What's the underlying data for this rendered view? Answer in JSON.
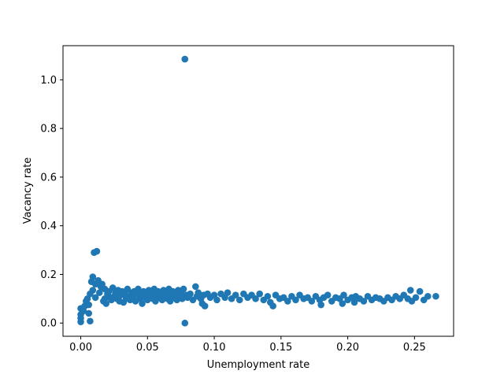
{
  "chart_data": {
    "type": "scatter",
    "xlabel": "Unemployment rate",
    "ylabel": "Vacancy rate",
    "xlim": [
      -0.0133,
      0.2793
    ],
    "ylim": [
      -0.0543,
      1.1403
    ],
    "xticks": [
      "0.00",
      "0.05",
      "0.10",
      "0.15",
      "0.20",
      "0.25"
    ],
    "xtick_values": [
      0,
      0.05,
      0.1,
      0.15,
      0.2,
      0.25
    ],
    "yticks": [
      "0.0",
      "0.2",
      "0.4",
      "0.6",
      "0.8",
      "1.0"
    ],
    "ytick_values": [
      0,
      0.2,
      0.4,
      0.6,
      0.8,
      1.0
    ],
    "grid": false,
    "marker_color": "#1f77b4",
    "series": [
      {
        "points": [
          [
            0.0,
            0.005
          ],
          [
            0.0,
            0.02
          ],
          [
            0.0,
            0.035
          ],
          [
            0.0,
            0.06
          ],
          [
            0.002,
            0.05
          ],
          [
            0.003,
            0.07
          ],
          [
            0.004,
            0.09
          ],
          [
            0.005,
            0.1
          ],
          [
            0.006,
            0.075
          ],
          [
            0.006,
            0.04
          ],
          [
            0.007,
            0.008
          ],
          [
            0.007,
            0.12
          ],
          [
            0.008,
            0.17
          ],
          [
            0.009,
            0.19
          ],
          [
            0.009,
            0.135
          ],
          [
            0.01,
            0.29
          ],
          [
            0.012,
            0.295
          ],
          [
            0.011,
            0.16
          ],
          [
            0.011,
            0.105
          ],
          [
            0.013,
            0.175
          ],
          [
            0.014,
            0.125
          ],
          [
            0.015,
            0.15
          ],
          [
            0.016,
            0.16
          ],
          [
            0.017,
            0.09
          ],
          [
            0.018,
            0.1
          ],
          [
            0.018,
            0.14
          ],
          [
            0.019,
            0.08
          ],
          [
            0.02,
            0.12
          ],
          [
            0.021,
            0.13
          ],
          [
            0.022,
            0.105
          ],
          [
            0.023,
            0.095
          ],
          [
            0.024,
            0.145
          ],
          [
            0.025,
            0.11
          ],
          [
            0.026,
            0.125
          ],
          [
            0.027,
            0.1
          ],
          [
            0.028,
            0.135
          ],
          [
            0.029,
            0.09
          ],
          [
            0.03,
            0.115
          ],
          [
            0.031,
            0.13
          ],
          [
            0.032,
            0.085
          ],
          [
            0.033,
            0.12
          ],
          [
            0.034,
            0.1
          ],
          [
            0.035,
            0.14
          ],
          [
            0.036,
            0.11
          ],
          [
            0.037,
            0.095
          ],
          [
            0.038,
            0.125
          ],
          [
            0.039,
            0.105
          ],
          [
            0.04,
            0.13
          ],
          [
            0.041,
            0.09
          ],
          [
            0.042,
            0.12
          ],
          [
            0.043,
            0.14
          ],
          [
            0.044,
            0.1
          ],
          [
            0.045,
            0.115
          ],
          [
            0.046,
            0.08
          ],
          [
            0.047,
            0.13
          ],
          [
            0.048,
            0.105
          ],
          [
            0.049,
            0.12
          ],
          [
            0.05,
            0.095
          ],
          [
            0.051,
            0.135
          ],
          [
            0.052,
            0.11
          ],
          [
            0.053,
            0.125
          ],
          [
            0.054,
            0.1
          ],
          [
            0.055,
            0.14
          ],
          [
            0.056,
            0.09
          ],
          [
            0.057,
            0.115
          ],
          [
            0.058,
            0.13
          ],
          [
            0.059,
            0.105
          ],
          [
            0.06,
            0.12
          ],
          [
            0.061,
            0.095
          ],
          [
            0.062,
            0.135
          ],
          [
            0.063,
            0.11
          ],
          [
            0.064,
            0.125
          ],
          [
            0.065,
            0.1
          ],
          [
            0.066,
            0.14
          ],
          [
            0.067,
            0.09
          ],
          [
            0.068,
            0.115
          ],
          [
            0.069,
            0.13
          ],
          [
            0.07,
            0.105
          ],
          [
            0.071,
            0.12
          ],
          [
            0.072,
            0.095
          ],
          [
            0.073,
            0.135
          ],
          [
            0.074,
            0.11
          ],
          [
            0.075,
            0.125
          ],
          [
            0.076,
            0.1
          ],
          [
            0.077,
            0.14
          ],
          [
            0.078,
            1.085
          ],
          [
            0.078,
            0.0
          ],
          [
            0.079,
            0.115
          ],
          [
            0.08,
            0.105
          ],
          [
            0.082,
            0.12
          ],
          [
            0.084,
            0.095
          ],
          [
            0.086,
            0.15
          ],
          [
            0.087,
            0.11
          ],
          [
            0.088,
            0.125
          ],
          [
            0.09,
            0.1
          ],
          [
            0.091,
            0.08
          ],
          [
            0.092,
            0.115
          ],
          [
            0.093,
            0.07
          ],
          [
            0.095,
            0.12
          ],
          [
            0.097,
            0.105
          ],
          [
            0.1,
            0.115
          ],
          [
            0.102,
            0.095
          ],
          [
            0.105,
            0.12
          ],
          [
            0.108,
            0.105
          ],
          [
            0.11,
            0.125
          ],
          [
            0.113,
            0.1
          ],
          [
            0.116,
            0.115
          ],
          [
            0.119,
            0.095
          ],
          [
            0.122,
            0.12
          ],
          [
            0.125,
            0.105
          ],
          [
            0.128,
            0.115
          ],
          [
            0.131,
            0.1
          ],
          [
            0.134,
            0.12
          ],
          [
            0.137,
            0.095
          ],
          [
            0.14,
            0.11
          ],
          [
            0.142,
            0.085
          ],
          [
            0.144,
            0.07
          ],
          [
            0.146,
            0.115
          ],
          [
            0.149,
            0.1
          ],
          [
            0.152,
            0.105
          ],
          [
            0.155,
            0.09
          ],
          [
            0.158,
            0.11
          ],
          [
            0.161,
            0.095
          ],
          [
            0.164,
            0.115
          ],
          [
            0.167,
            0.1
          ],
          [
            0.17,
            0.105
          ],
          [
            0.173,
            0.09
          ],
          [
            0.176,
            0.11
          ],
          [
            0.179,
            0.095
          ],
          [
            0.18,
            0.075
          ],
          [
            0.182,
            0.105
          ],
          [
            0.185,
            0.115
          ],
          [
            0.188,
            0.09
          ],
          [
            0.191,
            0.105
          ],
          [
            0.194,
            0.1
          ],
          [
            0.196,
            0.08
          ],
          [
            0.197,
            0.115
          ],
          [
            0.2,
            0.095
          ],
          [
            0.203,
            0.105
          ],
          [
            0.205,
            0.085
          ],
          [
            0.206,
            0.11
          ],
          [
            0.209,
            0.1
          ],
          [
            0.212,
            0.09
          ],
          [
            0.215,
            0.11
          ],
          [
            0.218,
            0.095
          ],
          [
            0.221,
            0.105
          ],
          [
            0.224,
            0.1
          ],
          [
            0.227,
            0.09
          ],
          [
            0.23,
            0.105
          ],
          [
            0.233,
            0.095
          ],
          [
            0.236,
            0.11
          ],
          [
            0.239,
            0.1
          ],
          [
            0.242,
            0.115
          ],
          [
            0.245,
            0.1
          ],
          [
            0.247,
            0.135
          ],
          [
            0.248,
            0.09
          ],
          [
            0.251,
            0.105
          ],
          [
            0.254,
            0.13
          ],
          [
            0.257,
            0.095
          ],
          [
            0.26,
            0.11
          ],
          [
            0.266,
            0.11
          ]
        ]
      }
    ]
  }
}
